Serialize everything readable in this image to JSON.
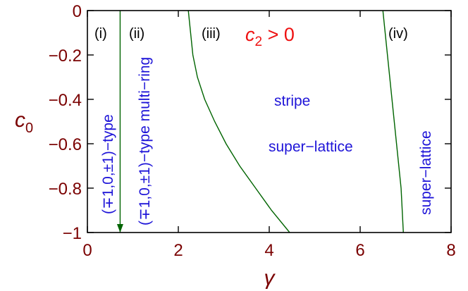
{
  "chart_data": {
    "type": "line",
    "xlabel": "γ",
    "ylabel_main": "c",
    "ylabel_sub": "0",
    "xlim": [
      0,
      8
    ],
    "ylim": [
      -1,
      0
    ],
    "xticks": [
      0,
      2,
      4,
      6,
      8
    ],
    "xtick_labels": [
      "0",
      "2",
      "4",
      "6",
      "8"
    ],
    "yticks": [
      0,
      -0.2,
      -0.4,
      -0.6,
      -0.8,
      -1
    ],
    "ytick_labels": [
      "0",
      "−0.2",
      "−0.4",
      "−0.6",
      "−0.8",
      "−1"
    ],
    "grid": false,
    "condition": {
      "main": "c",
      "sub": "2",
      "rest": " > 0",
      "color": "#ee1111"
    },
    "series": [
      {
        "x": [
          0.72,
          0.72
        ],
        "y": [
          0,
          -1
        ]
      },
      {
        "x": [
          2.22,
          2.27,
          2.32,
          2.42,
          2.58,
          2.8,
          3.05,
          3.35,
          3.7,
          4.05,
          4.45
        ],
        "y": [
          0,
          -0.1,
          -0.2,
          -0.3,
          -0.4,
          -0.5,
          -0.6,
          -0.7,
          -0.8,
          -0.9,
          -1
        ]
      },
      {
        "x": [
          6.5,
          6.55,
          6.6,
          6.65,
          6.7,
          6.75,
          6.8,
          6.85,
          6.9,
          6.95
        ],
        "y": [
          0,
          -0.1,
          -0.2,
          -0.3,
          -0.4,
          -0.5,
          -0.6,
          -0.7,
          -0.8,
          -1
        ]
      }
    ],
    "region_labels": [
      "(i)",
      "(ii)",
      "(iii)",
      "(iv)"
    ],
    "phase_labels": {
      "type_i": "(∓1,0,±1)−type",
      "type_ii": "(∓1,0,±1)−type multi−ring",
      "stripe": "stripe",
      "superlattice_iii": "super−lattice",
      "superlattice_iv": "super−lattice"
    },
    "colors": {
      "axes": "#000000",
      "ticks": "#7a0000",
      "curves": "#006400",
      "phase_text": "#1e14d8"
    }
  }
}
